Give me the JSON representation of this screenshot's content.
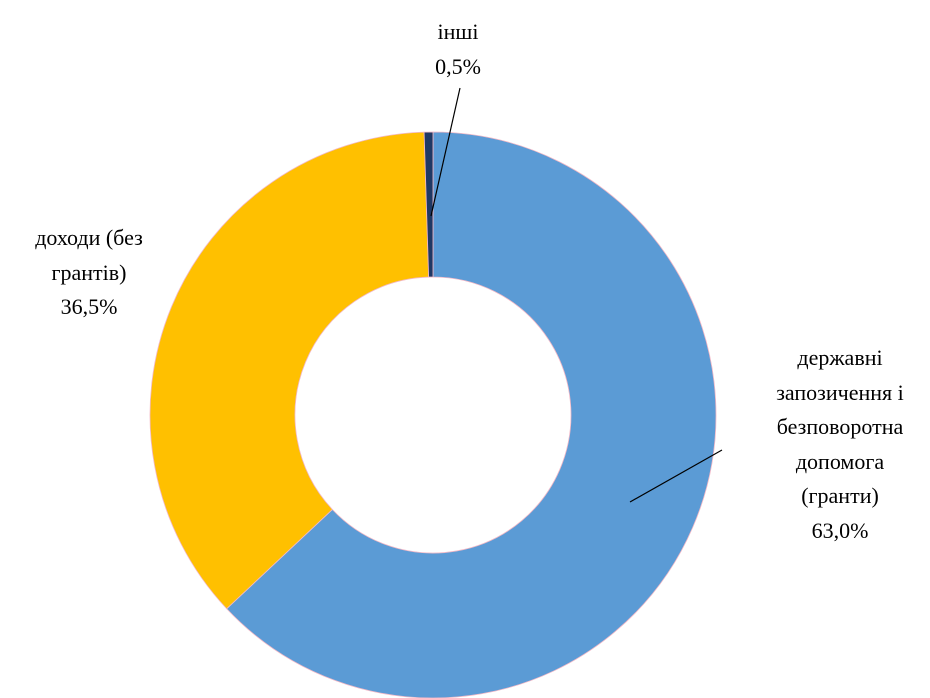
{
  "chart_data": {
    "type": "donut",
    "categories": [
      "державні запозичення і безповоротна допомога (гранти)",
      "доходи (без грантів)",
      "інші"
    ],
    "values": [
      63.0,
      36.5,
      0.5
    ],
    "value_labels": [
      "63,0%",
      "36,5%",
      "0,5%"
    ],
    "colors": [
      "#5b9bd5",
      "#ffc000",
      "#1f3864"
    ]
  }
}
